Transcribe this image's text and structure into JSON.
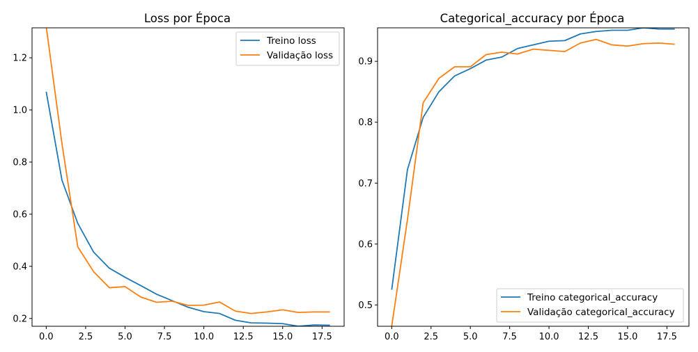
{
  "chart_data": [
    {
      "type": "line",
      "title": "Loss por Época",
      "xlabel": "",
      "ylabel": "",
      "xlim": [
        -0.9,
        18.9
      ],
      "ylim": [
        0.17,
        1.315
      ],
      "xticks": [
        0.0,
        2.5,
        5.0,
        7.5,
        10.0,
        12.5,
        15.0,
        17.5
      ],
      "xtick_labels": [
        "0.0",
        "2.5",
        "5.0",
        "7.5",
        "10.0",
        "12.5",
        "15.0",
        "17.5"
      ],
      "yticks": [
        0.2,
        0.4,
        0.6,
        0.8,
        1.0,
        1.2
      ],
      "ytick_labels": [
        "0.2",
        "0.4",
        "0.6",
        "0.8",
        "1.0",
        "1.2"
      ],
      "grid": false,
      "legend_position": "upper right",
      "x": [
        0,
        1,
        2,
        3,
        4,
        5,
        6,
        7,
        8,
        9,
        10,
        11,
        12,
        13,
        14,
        15,
        16,
        17,
        18
      ],
      "series": [
        {
          "name": "Treino loss",
          "color": "#1f77b4",
          "values": [
            1.07,
            0.73,
            0.565,
            0.455,
            0.393,
            0.358,
            0.326,
            0.293,
            0.268,
            0.243,
            0.226,
            0.219,
            0.193,
            0.183,
            0.182,
            0.18,
            0.17,
            0.175,
            0.174
          ]
        },
        {
          "name": "Validação loss",
          "color": "#ff7f0e",
          "values": [
            1.32,
            0.87,
            0.475,
            0.38,
            0.318,
            0.322,
            0.282,
            0.262,
            0.266,
            0.25,
            0.251,
            0.263,
            0.228,
            0.219,
            0.225,
            0.233,
            0.223,
            0.225,
            0.225
          ]
        }
      ]
    },
    {
      "type": "line",
      "title": "Categorical_accuracy por Época",
      "xlabel": "",
      "ylabel": "",
      "xlim": [
        -0.9,
        18.9
      ],
      "ylim": [
        0.465,
        0.955
      ],
      "xticks": [
        0.0,
        2.5,
        5.0,
        7.5,
        10.0,
        12.5,
        15.0,
        17.5
      ],
      "xtick_labels": [
        "0.0",
        "2.5",
        "5.0",
        "7.5",
        "10.0",
        "12.5",
        "15.0",
        "17.5"
      ],
      "yticks": [
        0.5,
        0.6,
        0.7,
        0.8,
        0.9
      ],
      "ytick_labels": [
        "0.5",
        "0.6",
        "0.7",
        "0.8",
        "0.9"
      ],
      "grid": false,
      "legend_position": "lower right",
      "x": [
        0,
        1,
        2,
        3,
        4,
        5,
        6,
        7,
        8,
        9,
        10,
        11,
        12,
        13,
        14,
        15,
        16,
        17,
        18
      ],
      "series": [
        {
          "name": "Treino categorical_accuracy",
          "color": "#1f77b4",
          "values": [
            0.525,
            0.722,
            0.808,
            0.85,
            0.876,
            0.888,
            0.902,
            0.907,
            0.921,
            0.927,
            0.933,
            0.934,
            0.945,
            0.949,
            0.951,
            0.951,
            0.955,
            0.953,
            0.953
          ]
        },
        {
          "name": "Validação categorical_accuracy",
          "color": "#ff7f0e",
          "values": [
            0.465,
            0.64,
            0.832,
            0.872,
            0.891,
            0.891,
            0.911,
            0.915,
            0.912,
            0.92,
            0.918,
            0.916,
            0.93,
            0.936,
            0.927,
            0.925,
            0.929,
            0.93,
            0.928
          ]
        }
      ]
    }
  ]
}
